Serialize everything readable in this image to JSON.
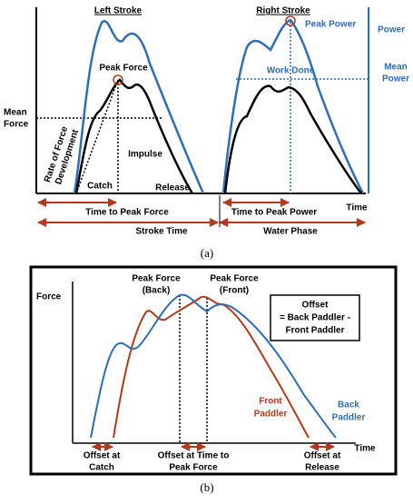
{
  "panel_a": {
    "left_title": "Left Stroke",
    "right_title": "Right Stroke",
    "power": "Power",
    "peak_power": "Peak Power",
    "mean_power": [
      "Mean",
      "Power"
    ],
    "work_done": "Work Done",
    "peak_force": "Peak Force",
    "mean_force": [
      "Mean",
      "Force"
    ],
    "rate_of_force_development": [
      "Rate of Force",
      "Development"
    ],
    "impulse": "Impulse",
    "catch": "Catch",
    "release": "Release",
    "time": "Time",
    "time_to_peak_force": "Time to Peak Force",
    "time_to_peak_power": "Time to Peak Power",
    "stroke_time": "Stroke Time",
    "water_phase": "Water Phase",
    "caption": "(a)"
  },
  "panel_b": {
    "force": "Force",
    "peak_force_back": [
      "Peak Force",
      "(Back)"
    ],
    "peak_force_front": [
      "Peak Force",
      "(Front)"
    ],
    "offset_box": [
      "Offset",
      "= Back Paddler -",
      "Front Paddler"
    ],
    "front_paddler": [
      "Front",
      "Paddler"
    ],
    "back_paddler": [
      "Back",
      "Paddler"
    ],
    "time": "Time",
    "offset_at_catch": [
      "Offset at",
      "Catch"
    ],
    "offset_at_peak": [
      "Offset at Time to",
      "Peak Force"
    ],
    "offset_at_release": [
      "Offset at",
      "Release"
    ],
    "caption": "(b)"
  }
}
